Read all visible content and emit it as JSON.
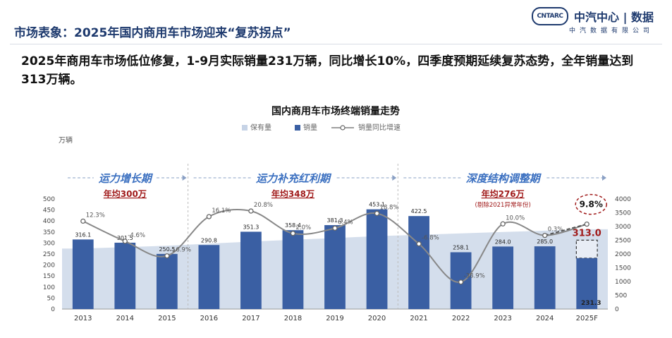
{
  "header": {
    "title": "市场表象：2025年国内商用车市场迎来“复苏拐点”",
    "logo_badge": "CNTARC",
    "logo_text": "中汽中心 | 数据",
    "logo_sub": "中汽数据有限公司"
  },
  "headline": "2025年商用车市场低位修复，1-9月实际销量231万辆，同比增长10%，四季度预期延续复苏态势，全年销量达到313万辆。",
  "chart_data": {
    "type": "bar",
    "title": "国内商用车市场终端销量走势",
    "ylabel": "万辆",
    "legend": [
      "保有量",
      "销量",
      "销量同比增速"
    ],
    "categories": [
      "2013",
      "2014",
      "2015",
      "2016",
      "2017",
      "2018",
      "2019",
      "2020",
      "2021",
      "2022",
      "2023",
      "2024",
      "2025F"
    ],
    "sales": [
      316.1,
      301.5,
      250.5,
      290.8,
      351.3,
      358.4,
      381.3,
      453.1,
      422.5,
      258.1,
      284.0,
      285.0,
      231.3
    ],
    "sales_labels": [
      "316.1",
      "301.5",
      "250.5",
      "290.8",
      "351.3",
      "358.4",
      "381.3",
      "453.1",
      "422.5",
      "258.1",
      "284.0",
      "285.0",
      "231.3"
    ],
    "forecast_total": 313.0,
    "forecast_label": "313.0",
    "growth_pct": [
      12.3,
      -4.6,
      -16.9,
      16.1,
      20.8,
      2.0,
      6.4,
      18.8,
      -6.8,
      -38.9,
      10.0,
      0.3,
      9.8
    ],
    "growth_labels": [
      "12.3%",
      "-4.6%",
      "-16.9%",
      "16.1%",
      "20.8%",
      "2.0%",
      "6.4%",
      "18.8%",
      "-6.8%",
      "-38.9%",
      "10.0%",
      "0.3%",
      "9.8%"
    ],
    "stock": [
      2200,
      2250,
      2300,
      2380,
      2450,
      2520,
      2580,
      2650,
      2700,
      2750,
      2800,
      2850,
      2900
    ],
    "left_axis": {
      "min": 0,
      "max": 500,
      "ticks": [
        "0",
        "50",
        "100",
        "150",
        "200",
        "250",
        "300",
        "350",
        "400",
        "450",
        "500"
      ]
    },
    "right_axis": {
      "min": 0,
      "max": 4000,
      "ticks": [
        "0",
        "500",
        "1000",
        "1500",
        "2000",
        "2500",
        "3000",
        "3500",
        "4000"
      ]
    },
    "periods": [
      {
        "name": "运力增长期",
        "avg": "年均300万",
        "note": ""
      },
      {
        "name": "运力补充红利期",
        "avg": "年均348万",
        "note": ""
      },
      {
        "name": "深度结构调整期",
        "avg": "年均276万",
        "note": "(剔除2021异常年份)"
      }
    ],
    "colors": {
      "bar": "#3a5fa3",
      "stock": "#c6d3e6",
      "line": "#888888",
      "accent": "#a01a1a",
      "forecast_box": "#e8edf5"
    }
  }
}
